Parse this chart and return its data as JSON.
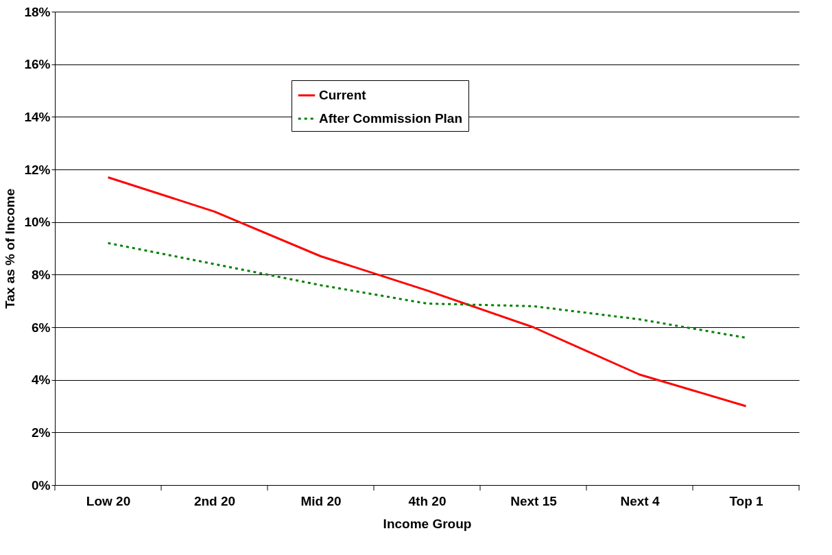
{
  "chart_data": {
    "type": "line",
    "xlabel": "Income Group",
    "ylabel": "Tax as % of Income",
    "categories": [
      "Low 20",
      "2nd 20",
      "Mid 20",
      "4th 20",
      "Next 15",
      "Next 4",
      "Top 1"
    ],
    "series": [
      {
        "name": "Current",
        "color": "#ff0000",
        "line_style": "solid",
        "values": [
          11.7,
          10.4,
          8.7,
          7.4,
          6.0,
          4.2,
          3.0
        ]
      },
      {
        "name": "After Commission Plan",
        "color": "#008000",
        "line_style": "dotted",
        "values": [
          9.2,
          8.4,
          7.6,
          6.9,
          6.8,
          6.3,
          5.6
        ]
      }
    ],
    "ylim": [
      0,
      18
    ],
    "yticks": [
      {
        "value": 0,
        "label": "0%"
      },
      {
        "value": 2,
        "label": "2%"
      },
      {
        "value": 4,
        "label": "4%"
      },
      {
        "value": 6,
        "label": "6%"
      },
      {
        "value": 8,
        "label": "8%"
      },
      {
        "value": 10,
        "label": "10%"
      },
      {
        "value": 12,
        "label": "12%"
      },
      {
        "value": 14,
        "label": "14%"
      },
      {
        "value": 16,
        "label": "16%"
      },
      {
        "value": 18,
        "label": "18%"
      }
    ],
    "grid": "y",
    "legend": "top",
    "marker": "none"
  }
}
